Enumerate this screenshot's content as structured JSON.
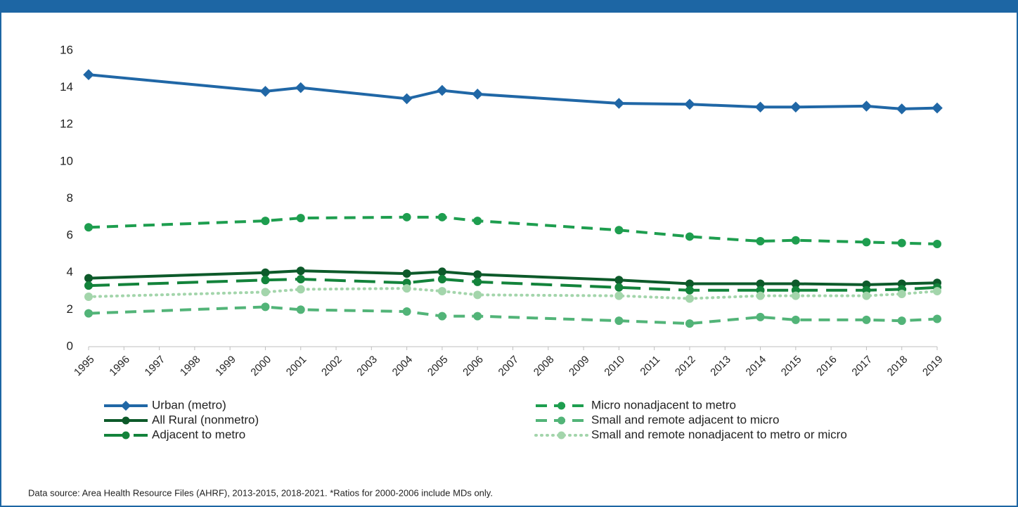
{
  "chart_data": {
    "type": "line",
    "x": [
      1995,
      2000,
      2001,
      2004,
      2005,
      2006,
      2010,
      2012,
      2014,
      2015,
      2017,
      2018,
      2019
    ],
    "xlim": [
      1995,
      2019
    ],
    "xticks": [
      1995,
      1996,
      1997,
      1998,
      1999,
      2000,
      2001,
      2002,
      2003,
      2004,
      2005,
      2006,
      2007,
      2008,
      2009,
      2010,
      2011,
      2012,
      2013,
      2014,
      2015,
      2016,
      2017,
      2018,
      2019
    ],
    "ylim": [
      0,
      16
    ],
    "yticks": [
      0,
      2,
      4,
      6,
      8,
      10,
      12,
      14,
      16
    ],
    "series": [
      {
        "name": "Urban (metro)",
        "color": "#2067a6",
        "dash": "solid",
        "marker": "diamond",
        "values": [
          14.7,
          13.8,
          14.0,
          13.4,
          13.85,
          13.65,
          13.15,
          13.1,
          12.95,
          12.95,
          13.0,
          12.85,
          12.9
        ]
      },
      {
        "name": "All Rural (nonmetro)",
        "color": "#0d5a2a",
        "dash": "solid",
        "marker": "circle",
        "values": [
          3.7,
          4.0,
          4.1,
          3.95,
          4.05,
          3.9,
          3.6,
          3.4,
          3.4,
          3.4,
          3.35,
          3.4,
          3.45
        ]
      },
      {
        "name": "Adjacent to metro",
        "color": "#13833b",
        "dash": "long-dash",
        "marker": "circle",
        "values": [
          3.3,
          3.6,
          3.65,
          3.45,
          3.65,
          3.5,
          3.2,
          3.05,
          3.05,
          3.05,
          3.05,
          3.1,
          3.2
        ]
      },
      {
        "name": "Micro nonadjacent to metro",
        "color": "#1e9e4f",
        "dash": "dashed",
        "marker": "circle",
        "values": [
          6.45,
          6.8,
          6.95,
          7.0,
          7.0,
          6.8,
          6.3,
          5.95,
          5.7,
          5.75,
          5.65,
          5.6,
          5.55
        ]
      },
      {
        "name": "Small and remote adjacent to micro",
        "color": "#52b478",
        "dash": "dashed",
        "marker": "circle",
        "values": [
          1.8,
          2.15,
          2.0,
          1.9,
          1.65,
          1.65,
          1.4,
          1.25,
          1.6,
          1.45,
          1.45,
          1.4,
          1.5
        ]
      },
      {
        "name": "Small and remote nonadjacent to metro or micro",
        "color": "#a3d5ab",
        "dash": "dotted",
        "marker": "circle",
        "values": [
          2.7,
          2.95,
          3.1,
          3.15,
          3.0,
          2.8,
          2.75,
          2.6,
          2.75,
          2.75,
          2.75,
          2.85,
          3.0
        ]
      }
    ],
    "footnote": "Data source: Area Health Resource Files (AHRF), 2013-2015, 2018-2021. *Ratios for 2000-2006 include MDs only."
  }
}
